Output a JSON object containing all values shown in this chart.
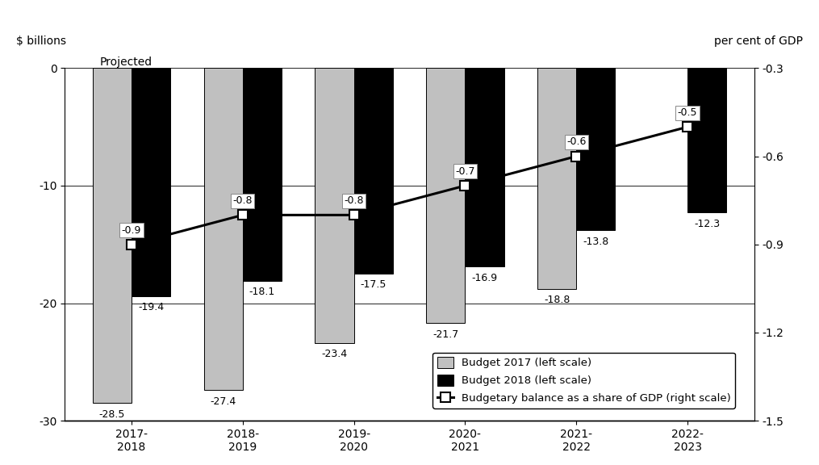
{
  "categories": [
    "2017-\n2018",
    "2018-\n2019",
    "2019-\n2020",
    "2020-\n2021",
    "2021-\n2022",
    "2022-\n2023"
  ],
  "budget2017": [
    -28.5,
    -27.4,
    -23.4,
    -21.7,
    -18.8,
    null
  ],
  "budget2018": [
    -19.4,
    -18.1,
    -17.5,
    -16.9,
    -13.8,
    -12.3
  ],
  "gdp_share": [
    -0.9,
    -0.8,
    -0.8,
    -0.7,
    -0.6,
    -0.5
  ],
  "budget2017_color": "#c0c0c0",
  "budget2018_color": "#000000",
  "line_color": "#000000",
  "marker_color": "#ffffff",
  "marker_edge_color": "#000000",
  "ylabel_left": "$ billions",
  "ylabel_right": "per cent of GDP",
  "ylim_left": [
    -30,
    0
  ],
  "ylim_right": [
    -1.5,
    -0.3
  ],
  "yticks_left": [
    0,
    -10,
    -20,
    -30
  ],
  "yticks_right": [
    -0.3,
    -0.6,
    -0.9,
    -1.2,
    -1.5
  ],
  "projected_label": "Projected",
  "legend_entries": [
    "Budget 2017 (left scale)",
    "Budget 2018 (left scale)",
    "Budgetary balance as a share of GDP (right scale)"
  ],
  "bar_width": 0.35,
  "title": "",
  "background_color": "#ffffff",
  "grid_color": "#000000",
  "label_fontsize": 9.5,
  "axis_fontsize": 10,
  "annotation_fontsize": 9
}
